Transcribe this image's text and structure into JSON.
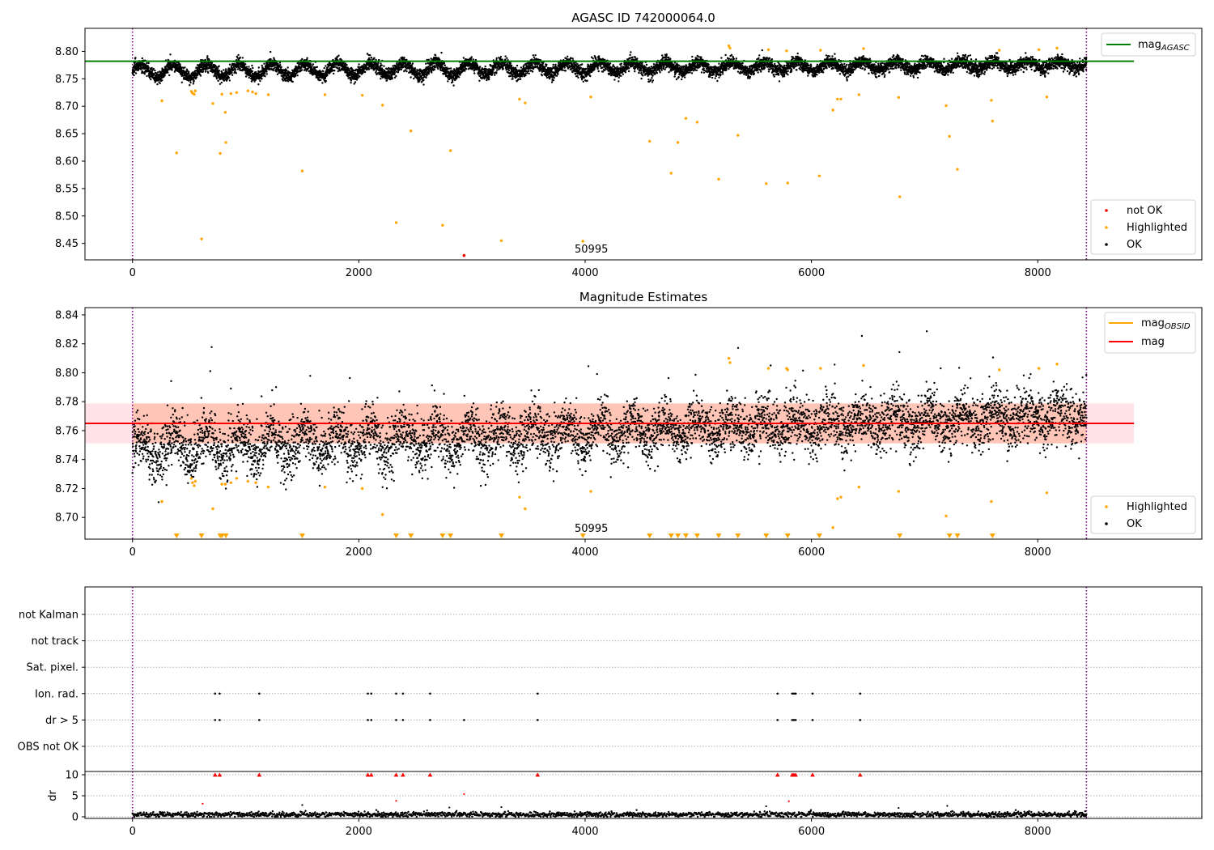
{
  "figure": {
    "title": "AGASC ID 742000064.0",
    "obsid_label": "50995",
    "colors": {
      "ok": "#000000",
      "highlighted": "#ffa500",
      "not_ok": "#ff0000",
      "mag_agasc": "#008000",
      "mag_obsid": "#ffa500",
      "mag": "#ff0000",
      "obs_band": "#ffa07a",
      "global_band": "#ffc0cb",
      "marker_line": "#800080"
    }
  },
  "chart_data": [
    {
      "type": "scatter",
      "title": "AGASC ID 742000064.0",
      "xlim": [
        -420,
        9450
      ],
      "ylim": [
        8.42,
        8.842
      ],
      "x_ticks": [
        0,
        2000,
        4000,
        6000,
        8000
      ],
      "x_tick_labels": [
        "0",
        "2000",
        "4000",
        "6000",
        "8000"
      ],
      "y_ticks": [
        8.45,
        8.5,
        8.55,
        8.6,
        8.65,
        8.7,
        8.75,
        8.8
      ],
      "y_tick_labels": [
        "8.45",
        "8.50",
        "8.55",
        "8.60",
        "8.65",
        "8.70",
        "8.75",
        "8.80"
      ],
      "obsid_boundaries": [
        0,
        8430
      ],
      "obsid_annotation": {
        "text": "50995",
        "x": 4030
      },
      "lines": [
        {
          "name": "mag_AGASC",
          "y": 8.782,
          "x": [
            -420,
            8850
          ]
        }
      ],
      "legend_top": [
        "mag_AGASC"
      ],
      "legend_bottom": [
        "not OK",
        "Highlighted",
        "OK"
      ],
      "ok_series": {
        "name": "OK",
        "n_points": 8420,
        "x_range": [
          0,
          8430
        ],
        "baseline": 8.764,
        "trend": 0.012,
        "wave_amplitude": 0.012,
        "wave_period": 290,
        "noise": 0.006
      },
      "highlighted": [
        [
          260,
          8.71
        ],
        [
          390,
          8.615
        ],
        [
          520,
          8.727
        ],
        [
          530,
          8.724
        ],
        [
          545,
          8.722
        ],
        [
          555,
          8.728
        ],
        [
          610,
          8.458
        ],
        [
          710,
          8.705
        ],
        [
          775,
          8.614
        ],
        [
          790,
          8.722
        ],
        [
          820,
          8.689
        ],
        [
          825,
          8.634
        ],
        [
          870,
          8.723
        ],
        [
          920,
          8.725
        ],
        [
          1020,
          8.728
        ],
        [
          1060,
          8.726
        ],
        [
          1090,
          8.723
        ],
        [
          1200,
          8.721
        ],
        [
          1500,
          8.582
        ],
        [
          1700,
          8.721
        ],
        [
          2030,
          8.72
        ],
        [
          2210,
          8.702
        ],
        [
          2330,
          8.488
        ],
        [
          2460,
          8.655
        ],
        [
          2740,
          8.483
        ],
        [
          2810,
          8.619
        ],
        [
          3260,
          8.455
        ],
        [
          3420,
          8.713
        ],
        [
          3470,
          8.706
        ],
        [
          3980,
          8.454
        ],
        [
          4050,
          8.717
        ],
        [
          4570,
          8.636
        ],
        [
          4760,
          8.578
        ],
        [
          4820,
          8.634
        ],
        [
          4890,
          8.678
        ],
        [
          4990,
          8.671
        ],
        [
          5180,
          8.567
        ],
        [
          5270,
          8.81
        ],
        [
          5280,
          8.806
        ],
        [
          5350,
          8.647
        ],
        [
          5600,
          8.559
        ],
        [
          5620,
          8.803
        ],
        [
          5780,
          8.801
        ],
        [
          5790,
          8.56
        ],
        [
          6070,
          8.573
        ],
        [
          6080,
          8.802
        ],
        [
          6190,
          8.693
        ],
        [
          6230,
          8.713
        ],
        [
          6260,
          8.713
        ],
        [
          6420,
          8.721
        ],
        [
          6460,
          8.805
        ],
        [
          6770,
          8.716
        ],
        [
          6780,
          8.535
        ],
        [
          7190,
          8.701
        ],
        [
          7220,
          8.645
        ],
        [
          7290,
          8.585
        ],
        [
          7590,
          8.711
        ],
        [
          7600,
          8.673
        ],
        [
          7660,
          8.802
        ],
        [
          8010,
          8.803
        ],
        [
          8080,
          8.717
        ],
        [
          8170,
          8.806
        ]
      ],
      "not_ok": [
        [
          2930,
          8.428
        ]
      ]
    },
    {
      "type": "scatter",
      "title": "Magnitude Estimates",
      "xlim": [
        -420,
        9450
      ],
      "ylim": [
        8.685,
        8.845
      ],
      "x_ticks": [
        0,
        2000,
        4000,
        6000,
        8000
      ],
      "x_tick_labels": [
        "0",
        "2000",
        "4000",
        "6000",
        "8000"
      ],
      "y_ticks": [
        8.7,
        8.72,
        8.74,
        8.76,
        8.78,
        8.8,
        8.82,
        8.84
      ],
      "y_tick_labels": [
        "8.70",
        "8.72",
        "8.74",
        "8.76",
        "8.78",
        "8.80",
        "8.82",
        "8.84"
      ],
      "obsid_boundaries": [
        0,
        8430
      ],
      "obsid_annotation": {
        "text": "50995",
        "x": 4030
      },
      "lines": [
        {
          "name": "mag_OBSID",
          "y": 8.765,
          "x": [
            0,
            8430
          ]
        },
        {
          "name": "mag",
          "y": 8.765,
          "x": [
            -420,
            8850
          ]
        }
      ],
      "bands": [
        {
          "name": "global",
          "y": [
            8.7512,
            8.7788
          ],
          "x": [
            -420,
            8850
          ]
        },
        {
          "name": "obsid",
          "y": [
            8.7512,
            8.7788
          ],
          "x": [
            0,
            8430
          ]
        }
      ],
      "legend_top": [
        "mag_OBSID",
        "mag"
      ],
      "legend_bottom": [
        "Highlighted",
        "OK"
      ],
      "ok_series": {
        "name": "OK",
        "n_points": 6100,
        "x_range": [
          0,
          8430
        ],
        "baseline": 8.755,
        "trend": 0.015,
        "wave_amplitude": 0.009,
        "wave_period": 290,
        "noise": 0.009
      },
      "highlighted": [
        [
          260,
          8.711
        ],
        [
          520,
          8.727
        ],
        [
          530,
          8.724
        ],
        [
          545,
          8.722
        ],
        [
          555,
          8.725
        ],
        [
          710,
          8.706
        ],
        [
          790,
          8.723
        ],
        [
          820,
          8.723
        ],
        [
          870,
          8.724
        ],
        [
          920,
          8.727
        ],
        [
          1020,
          8.725
        ],
        [
          1090,
          8.724
        ],
        [
          1200,
          8.721
        ],
        [
          1700,
          8.721
        ],
        [
          2030,
          8.72
        ],
        [
          2210,
          8.702
        ],
        [
          3420,
          8.714
        ],
        [
          3470,
          8.706
        ],
        [
          4050,
          8.718
        ],
        [
          5270,
          8.81
        ],
        [
          5280,
          8.807
        ],
        [
          5620,
          8.803
        ],
        [
          5780,
          8.803
        ],
        [
          5790,
          8.802
        ],
        [
          6080,
          8.803
        ],
        [
          6190,
          8.693
        ],
        [
          6230,
          8.713
        ],
        [
          6260,
          8.714
        ],
        [
          6420,
          8.721
        ],
        [
          6460,
          8.805
        ],
        [
          6770,
          8.718
        ],
        [
          7190,
          8.701
        ],
        [
          7590,
          8.711
        ],
        [
          7660,
          8.802
        ],
        [
          8010,
          8.803
        ],
        [
          8080,
          8.717
        ],
        [
          8170,
          8.806
        ]
      ],
      "below_range": [
        390,
        610,
        775,
        790,
        825,
        1500,
        2330,
        2460,
        2740,
        2810,
        3260,
        3980,
        4570,
        4760,
        4820,
        4890,
        4990,
        5180,
        5350,
        5600,
        5790,
        6070,
        6780,
        7220,
        7290,
        7600
      ]
    },
    {
      "type": "scatter",
      "title": "",
      "xlim": [
        -420,
        9450
      ],
      "categories": [
        "OBS not OK",
        "dr > 5",
        "Ion. rad.",
        "Sat. pixel.",
        "not track",
        "not Kalman"
      ],
      "obsid_boundaries": [
        0,
        8430
      ],
      "flags": {
        "dr > 5": [
          730,
          770,
          1120,
          2080,
          2110,
          2330,
          2390,
          2630,
          2930,
          3580,
          5700,
          5830,
          5845,
          5860,
          6010,
          6430
        ],
        "Ion. rad.": [
          730,
          770,
          1120,
          2080,
          2110,
          2330,
          2390,
          2630,
          3580,
          5700,
          5830,
          5845,
          5860,
          6010,
          6430
        ]
      }
    },
    {
      "type": "scatter",
      "title": "",
      "ylabel": "dr",
      "xlim": [
        -420,
        9450
      ],
      "ylim": [
        0,
        10
      ],
      "y_ticks": [
        0,
        5,
        10
      ],
      "y_tick_labels": [
        "0",
        "5",
        "10"
      ],
      "x_ticks": [
        0,
        2000,
        4000,
        6000,
        8000
      ],
      "x_tick_labels": [
        "0",
        "2000",
        "4000",
        "6000",
        "8000"
      ],
      "obsid_boundaries": [
        0,
        8430
      ],
      "capped_at_10": [
        730,
        770,
        1120,
        2080,
        2110,
        2330,
        2390,
        2630,
        3580,
        5700,
        5830,
        5845,
        5860,
        6010,
        6430
      ],
      "red_points": [
        [
          620,
          3.1
        ],
        [
          2330,
          3.8
        ],
        [
          2930,
          5.4
        ],
        [
          5800,
          3.7
        ]
      ],
      "outliers": [
        [
          1500,
          2.8
        ],
        [
          2800,
          2.2
        ],
        [
          3260,
          2.3
        ],
        [
          5600,
          2.5
        ],
        [
          6770,
          2.1
        ],
        [
          7200,
          2.6
        ]
      ],
      "ok_series": {
        "name": "OK",
        "n_points": 2200,
        "x_range": [
          0,
          8430
        ],
        "typical": 0.55,
        "spread": 0.55
      }
    }
  ]
}
